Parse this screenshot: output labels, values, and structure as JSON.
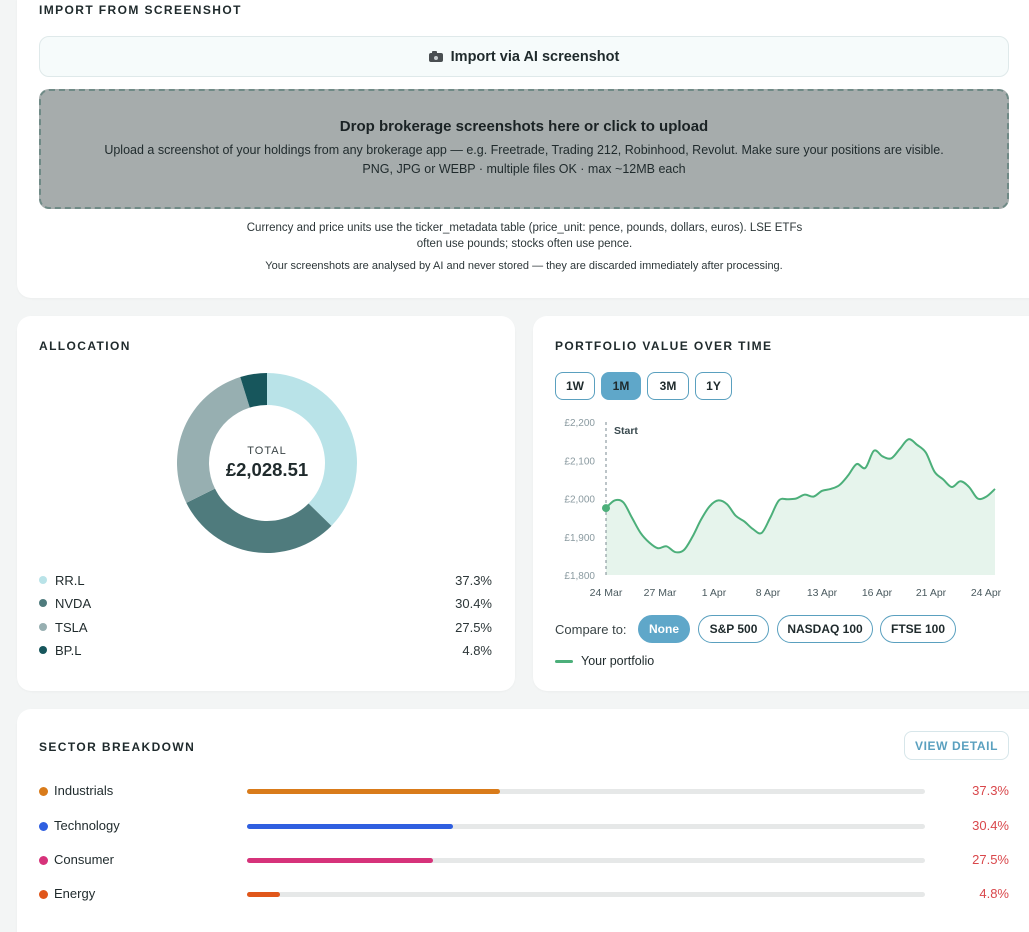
{
  "import": {
    "title": "IMPORT FROM SCREENSHOT",
    "button_label": "Import via AI screenshot",
    "button_icon": "camera-icon",
    "dropzone_title": "Drop brokerage screenshots here or click to upload",
    "dropzone_sub": "Upload a screenshot of your holdings from any brokerage app — e.g. Freetrade, Trading 212, Robinhood, Revolut. Make sure your positions are visible.",
    "dropzone_formats": "PNG, JPG or WEBP · multiple files OK · max ~12MB each",
    "note_units": "Currency and price units use the ticker_metadata table (price_unit: pence, pounds, dollars, euros). LSE ETFs often use pounds; stocks often use pence.",
    "note_privacy": "Your screenshots are analysed by AI and never stored — they are discarded immediately after processing."
  },
  "allocation": {
    "title": "ALLOCATION",
    "total_label": "TOTAL",
    "total_value": "£2,028.51",
    "items": [
      {
        "name": "RR.L",
        "pct_label": "37.3%",
        "pct": 37.3,
        "color": "#b9e3e8"
      },
      {
        "name": "NVDA",
        "pct_label": "30.4%",
        "pct": 30.4,
        "color": "#4f7b7d"
      },
      {
        "name": "TSLA",
        "pct_label": "27.5%",
        "pct": 27.5,
        "color": "#97afb1"
      },
      {
        "name": "BP.L",
        "pct_label": "4.8%",
        "pct": 4.8,
        "color": "#17565c"
      }
    ]
  },
  "portfolio": {
    "title": "PORTFOLIO VALUE OVER TIME",
    "ranges": [
      {
        "label": "1W",
        "active": false
      },
      {
        "label": "1M",
        "active": true
      },
      {
        "label": "3M",
        "active": false
      },
      {
        "label": "1Y",
        "active": false
      }
    ],
    "compare_label": "Compare to:",
    "compare_options": [
      {
        "label": "None",
        "active": true
      },
      {
        "label": "S&P 500",
        "active": false
      },
      {
        "label": "NASDAQ 100",
        "active": false
      },
      {
        "label": "FTSE 100",
        "active": false
      }
    ],
    "series_name": "Your portfolio",
    "line_color": "#4caf7a",
    "fill_color": "#e6f4ec"
  },
  "chart_data": {
    "type": "area",
    "y_ticks": [
      "£2,200",
      "£2,100",
      "£2,000",
      "£1,900",
      "£1,800"
    ],
    "x_ticks": [
      "24 Mar",
      "27 Mar",
      "1 Apr",
      "8 Apr",
      "13 Apr",
      "16 Apr",
      "21 Apr",
      "24 Apr"
    ],
    "ylim": [
      1800,
      2200
    ],
    "annotation": "Start",
    "series": [
      {
        "name": "Your portfolio",
        "values": [
          1975,
          1995,
          1990,
          1950,
          1910,
          1885,
          1870,
          1875,
          1860,
          1865,
          1900,
          1945,
          1980,
          1995,
          1985,
          1955,
          1940,
          1920,
          1910,
          1950,
          1995,
          1998,
          2000,
          2010,
          2005,
          2020,
          2025,
          2035,
          2060,
          2090,
          2080,
          2125,
          2110,
          2105,
          2130,
          2155,
          2140,
          2120,
          2070,
          2050,
          2030,
          2045,
          2030,
          2000,
          2005,
          2025
        ]
      }
    ]
  },
  "sectors": {
    "title": "SECTOR BREAKDOWN",
    "view_detail": "VIEW DETAIL",
    "items": [
      {
        "name": "Industrials",
        "pct_label": "37.3%",
        "pct": 37.3,
        "color": "#d97b1a"
      },
      {
        "name": "Technology",
        "pct_label": "30.4%",
        "pct": 30.4,
        "color": "#2f5fe0"
      },
      {
        "name": "Consumer",
        "pct_label": "27.5%",
        "pct": 27.5,
        "color": "#d6327a"
      },
      {
        "name": "Energy",
        "pct_label": "4.8%",
        "pct": 4.8,
        "color": "#e0561a"
      }
    ]
  }
}
